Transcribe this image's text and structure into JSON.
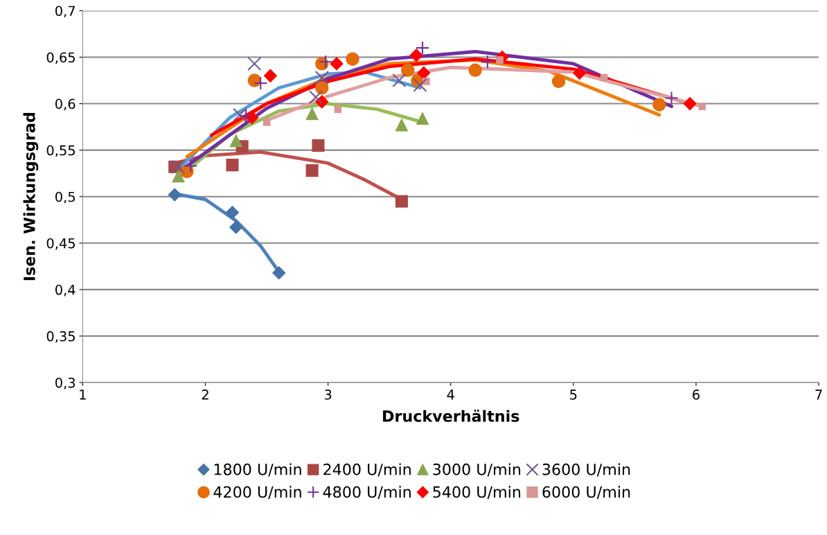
{
  "chart_data": {
    "type": "scatter",
    "xlabel": "Druckverhältnis",
    "ylabel": "Isen. Wirkungsgrad",
    "xlim": [
      1,
      7
    ],
    "xticks": [
      1,
      2,
      3,
      4,
      5,
      6,
      7
    ],
    "ylim": [
      0.3,
      0.7
    ],
    "yticks": [
      {
        "value": 0.3,
        "label": "0,3"
      },
      {
        "value": 0.35,
        "label": "0,35"
      },
      {
        "value": 0.4,
        "label": "0,4"
      },
      {
        "value": 0.45,
        "label": "0,45"
      },
      {
        "value": 0.5,
        "label": "0,5"
      },
      {
        "value": 0.55,
        "label": "0,55"
      },
      {
        "value": 0.6,
        "label": "0,6"
      },
      {
        "value": 0.65,
        "label": "0,65"
      },
      {
        "value": 0.7,
        "label": "0,7"
      }
    ],
    "grid": "y",
    "legend": "bottom",
    "series": [
      {
        "name": "1800 U/min",
        "color": "#4572a7",
        "marker": "diamond",
        "x": [
          1.75,
          2.22,
          2.25,
          2.6
        ],
        "values": [
          0.502,
          0.483,
          0.467,
          0.418
        ]
      },
      {
        "name": "2400 U/min",
        "color": "#aa4643",
        "marker": "square",
        "x": [
          1.75,
          2.22,
          2.3,
          2.87,
          2.92,
          3.6
        ],
        "values": [
          0.532,
          0.534,
          0.554,
          0.528,
          0.555,
          0.495
        ]
      },
      {
        "name": "3000 U/min",
        "color": "#89a54e",
        "marker": "triangle",
        "x": [
          1.78,
          2.25,
          2.87,
          3.6,
          3.77
        ],
        "values": [
          0.522,
          0.56,
          0.589,
          0.577,
          0.584
        ]
      },
      {
        "name": "3600 U/min",
        "color": "#71588f",
        "marker": "cross",
        "x": [
          1.78,
          2.28,
          2.4,
          2.9,
          2.95,
          3.58,
          3.75
        ],
        "values": [
          0.532,
          0.588,
          0.643,
          0.607,
          0.628,
          0.625,
          0.62
        ]
      },
      {
        "name": "4200 U/min",
        "color": "#e46c0a",
        "marker": "circle",
        "x": [
          1.85,
          2.4,
          2.95,
          2.95,
          3.2,
          3.65,
          3.73,
          4.2,
          4.88,
          5.7
        ],
        "values": [
          0.527,
          0.625,
          0.643,
          0.617,
          0.648,
          0.636,
          0.625,
          0.636,
          0.624,
          0.599
        ]
      },
      {
        "name": "4800 U/min",
        "color": "#7030a0",
        "marker": "plus",
        "x": [
          1.88,
          2.33,
          2.45,
          2.98,
          3.77,
          4.3,
          5.8
        ],
        "values": [
          0.533,
          0.587,
          0.622,
          0.645,
          0.66,
          0.645,
          0.606
        ]
      },
      {
        "name": "5400 U/min",
        "color": "#ff0000",
        "marker": "diamond",
        "x": [
          2.38,
          2.53,
          2.95,
          3.07,
          3.72,
          3.78,
          4.42,
          5.05,
          5.95
        ],
        "values": [
          0.585,
          0.63,
          0.602,
          0.643,
          0.652,
          0.633,
          0.65,
          0.633,
          0.6
        ]
      },
      {
        "name": "6000 U/min",
        "color": "#d99694",
        "marker": "square",
        "x": [
          2.5,
          3.08,
          3.8,
          4.4,
          5.25,
          6.05
        ],
        "values": [
          0.58,
          0.594,
          0.624,
          0.647,
          0.628,
          0.597
        ]
      },
      {
        "type": "line",
        "color": "#4f81bd",
        "x": [
          1.75,
          2.0,
          2.25,
          2.45,
          2.6
        ],
        "values": [
          0.503,
          0.497,
          0.474,
          0.447,
          0.419
        ]
      },
      {
        "type": "line",
        "color": "#c0504d",
        "x": [
          1.75,
          2.0,
          2.45,
          3.0,
          3.3,
          3.6
        ],
        "values": [
          0.536,
          0.544,
          0.548,
          0.536,
          0.518,
          0.497
        ]
      },
      {
        "type": "line",
        "color": "#9bbb59",
        "x": [
          1.78,
          2.2,
          2.6,
          3.0,
          3.4,
          3.77
        ],
        "values": [
          0.52,
          0.567,
          0.592,
          0.6,
          0.594,
          0.58
        ]
      },
      {
        "type": "line",
        "color": "#5b9bd5",
        "x": [
          1.8,
          2.2,
          2.6,
          3.0,
          3.3,
          3.75
        ],
        "values": [
          0.532,
          0.585,
          0.617,
          0.632,
          0.634,
          0.617
        ]
      },
      {
        "type": "line",
        "color": "#f07d10",
        "x": [
          1.85,
          2.5,
          3.0,
          3.5,
          4.2,
          4.8,
          5.7
        ],
        "values": [
          0.543,
          0.6,
          0.628,
          0.643,
          0.647,
          0.635,
          0.588
        ]
      },
      {
        "type": "line",
        "color": "#7030a0",
        "x": [
          1.85,
          2.5,
          3.0,
          3.5,
          4.2,
          5.0,
          5.8
        ],
        "values": [
          0.533,
          0.595,
          0.627,
          0.648,
          0.656,
          0.643,
          0.597
        ]
      },
      {
        "type": "line",
        "color": "#ff0000",
        "x": [
          2.05,
          2.5,
          3.0,
          3.5,
          4.2,
          5.0,
          5.95
        ],
        "values": [
          0.566,
          0.6,
          0.624,
          0.64,
          0.648,
          0.637,
          0.6
        ]
      },
      {
        "type": "line",
        "color": "#e0a0a0",
        "x": [
          2.5,
          3.0,
          3.5,
          4.0,
          5.0,
          6.05
        ],
        "values": [
          0.582,
          0.608,
          0.628,
          0.639,
          0.634,
          0.597
        ]
      }
    ]
  }
}
